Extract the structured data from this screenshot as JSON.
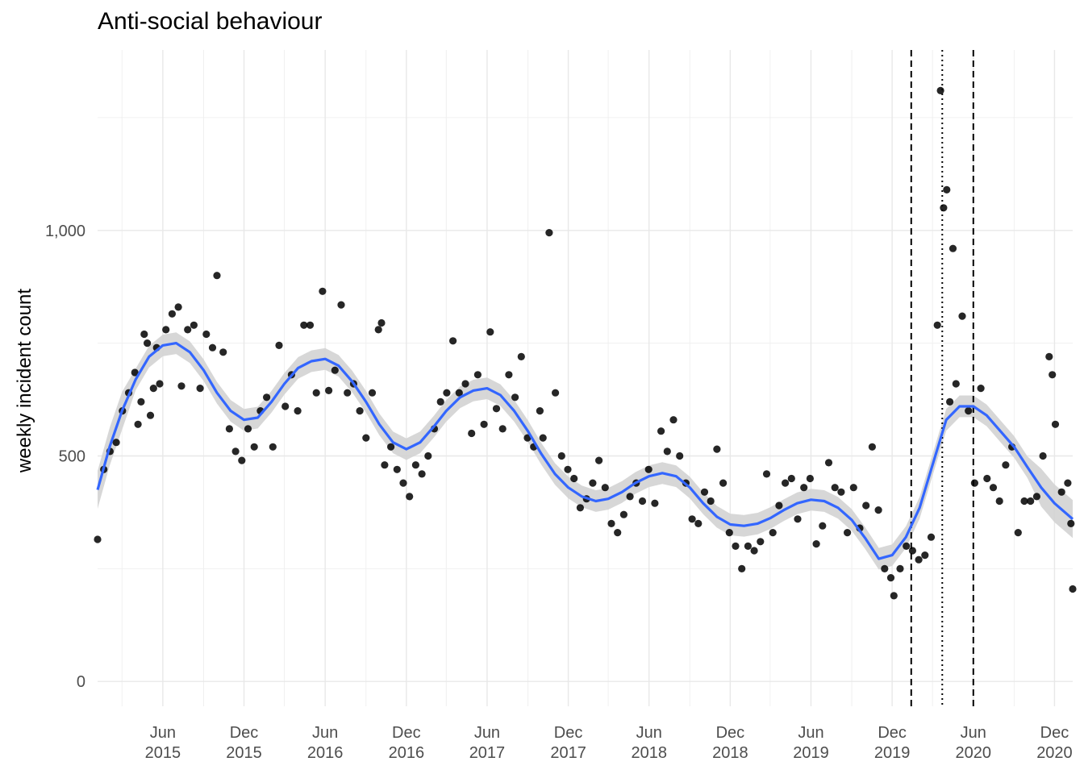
{
  "chart_data": {
    "type": "scatter",
    "title": "Anti-social behaviour",
    "xlabel": "",
    "ylabel": "weekly incident count",
    "x_range": [
      "2015-01-05",
      "2021-01-11"
    ],
    "ylim": [
      -55,
      1400
    ],
    "y_ticks": [
      {
        "value": 0,
        "label": "0"
      },
      {
        "value": 500,
        "label": "500"
      },
      {
        "value": 1000,
        "label": "1,000"
      }
    ],
    "x_ticks": [
      {
        "date": "2015-06-01",
        "line1": "Jun",
        "line2": "2015"
      },
      {
        "date": "2015-12-01",
        "line1": "Dec",
        "line2": "2015"
      },
      {
        "date": "2016-06-01",
        "line1": "Jun",
        "line2": "2016"
      },
      {
        "date": "2016-12-01",
        "line1": "Dec",
        "line2": "2016"
      },
      {
        "date": "2017-06-01",
        "line1": "Jun",
        "line2": "2017"
      },
      {
        "date": "2017-12-01",
        "line1": "Dec",
        "line2": "2017"
      },
      {
        "date": "2018-06-01",
        "line1": "Jun",
        "line2": "2018"
      },
      {
        "date": "2018-12-01",
        "line1": "Dec",
        "line2": "2018"
      },
      {
        "date": "2019-06-01",
        "line1": "Jun",
        "line2": "2019"
      },
      {
        "date": "2019-12-01",
        "line1": "Dec",
        "line2": "2019"
      },
      {
        "date": "2020-06-01",
        "line1": "Jun",
        "line2": "2020"
      },
      {
        "date": "2020-12-01",
        "line1": "Dec",
        "line2": "2020"
      }
    ],
    "grid": true,
    "series": [
      {
        "kind": "points",
        "color": "#000000",
        "points": [
          [
            "2015-01-05",
            315
          ],
          [
            "2015-01-19",
            470
          ],
          [
            "2015-02-02",
            510
          ],
          [
            "2015-02-16",
            530
          ],
          [
            "2015-03-02",
            600
          ],
          [
            "2015-03-16",
            640
          ],
          [
            "2015-03-30",
            685
          ],
          [
            "2015-04-06",
            570
          ],
          [
            "2015-04-13",
            620
          ],
          [
            "2015-04-20",
            770
          ],
          [
            "2015-04-27",
            750
          ],
          [
            "2015-05-04",
            590
          ],
          [
            "2015-05-11",
            650
          ],
          [
            "2015-05-18",
            740
          ],
          [
            "2015-05-25",
            660
          ],
          [
            "2015-06-08",
            780
          ],
          [
            "2015-06-22",
            815
          ],
          [
            "2015-07-06",
            830
          ],
          [
            "2015-07-13",
            655
          ],
          [
            "2015-07-27",
            780
          ],
          [
            "2015-08-10",
            790
          ],
          [
            "2015-08-24",
            650
          ],
          [
            "2015-09-07",
            770
          ],
          [
            "2015-09-21",
            740
          ],
          [
            "2015-10-01",
            900
          ],
          [
            "2015-10-15",
            730
          ],
          [
            "2015-10-29",
            560
          ],
          [
            "2015-11-12",
            510
          ],
          [
            "2015-11-26",
            490
          ],
          [
            "2015-12-10",
            560
          ],
          [
            "2015-12-24",
            520
          ],
          [
            "2016-01-07",
            600
          ],
          [
            "2016-01-21",
            630
          ],
          [
            "2016-02-04",
            520
          ],
          [
            "2016-02-18",
            745
          ],
          [
            "2016-03-03",
            610
          ],
          [
            "2016-03-17",
            680
          ],
          [
            "2016-03-31",
            600
          ],
          [
            "2016-04-14",
            790
          ],
          [
            "2016-04-28",
            790
          ],
          [
            "2016-05-12",
            640
          ],
          [
            "2016-05-26",
            865
          ],
          [
            "2016-06-09",
            645
          ],
          [
            "2016-06-23",
            690
          ],
          [
            "2016-07-07",
            835
          ],
          [
            "2016-07-21",
            640
          ],
          [
            "2016-08-04",
            660
          ],
          [
            "2016-08-18",
            600
          ],
          [
            "2016-09-01",
            540
          ],
          [
            "2016-09-15",
            640
          ],
          [
            "2016-09-29",
            780
          ],
          [
            "2016-10-06",
            795
          ],
          [
            "2016-10-13",
            480
          ],
          [
            "2016-10-27",
            520
          ],
          [
            "2016-11-10",
            470
          ],
          [
            "2016-11-24",
            440
          ],
          [
            "2016-12-08",
            410
          ],
          [
            "2016-12-22",
            480
          ],
          [
            "2017-01-05",
            460
          ],
          [
            "2017-01-19",
            500
          ],
          [
            "2017-02-02",
            560
          ],
          [
            "2017-02-16",
            620
          ],
          [
            "2017-03-02",
            640
          ],
          [
            "2017-03-16",
            755
          ],
          [
            "2017-03-30",
            640
          ],
          [
            "2017-04-13",
            660
          ],
          [
            "2017-04-27",
            550
          ],
          [
            "2017-05-11",
            680
          ],
          [
            "2017-05-25",
            570
          ],
          [
            "2017-06-08",
            775
          ],
          [
            "2017-06-22",
            605
          ],
          [
            "2017-07-06",
            560
          ],
          [
            "2017-07-20",
            680
          ],
          [
            "2017-08-03",
            630
          ],
          [
            "2017-08-17",
            720
          ],
          [
            "2017-08-31",
            540
          ],
          [
            "2017-09-14",
            520
          ],
          [
            "2017-09-28",
            600
          ],
          [
            "2017-10-05",
            540
          ],
          [
            "2017-10-19",
            995
          ],
          [
            "2017-11-02",
            640
          ],
          [
            "2017-11-16",
            500
          ],
          [
            "2017-11-30",
            470
          ],
          [
            "2017-12-14",
            450
          ],
          [
            "2017-12-28",
            385
          ],
          [
            "2018-01-11",
            405
          ],
          [
            "2018-01-25",
            440
          ],
          [
            "2018-02-08",
            490
          ],
          [
            "2018-02-22",
            430
          ],
          [
            "2018-03-08",
            350
          ],
          [
            "2018-03-22",
            330
          ],
          [
            "2018-04-05",
            370
          ],
          [
            "2018-04-19",
            410
          ],
          [
            "2018-05-03",
            440
          ],
          [
            "2018-05-17",
            400
          ],
          [
            "2018-05-31",
            470
          ],
          [
            "2018-06-14",
            395
          ],
          [
            "2018-06-28",
            555
          ],
          [
            "2018-07-12",
            510
          ],
          [
            "2018-07-26",
            580
          ],
          [
            "2018-08-09",
            500
          ],
          [
            "2018-08-23",
            440
          ],
          [
            "2018-09-06",
            360
          ],
          [
            "2018-09-20",
            350
          ],
          [
            "2018-10-04",
            420
          ],
          [
            "2018-10-18",
            400
          ],
          [
            "2018-11-01",
            515
          ],
          [
            "2018-11-15",
            440
          ],
          [
            "2018-11-29",
            330
          ],
          [
            "2018-12-13",
            300
          ],
          [
            "2018-12-27",
            250
          ],
          [
            "2019-01-10",
            300
          ],
          [
            "2019-01-24",
            290
          ],
          [
            "2019-02-07",
            310
          ],
          [
            "2019-02-21",
            460
          ],
          [
            "2019-03-07",
            330
          ],
          [
            "2019-03-21",
            390
          ],
          [
            "2019-04-04",
            440
          ],
          [
            "2019-04-18",
            450
          ],
          [
            "2019-05-02",
            360
          ],
          [
            "2019-05-16",
            430
          ],
          [
            "2019-05-30",
            450
          ],
          [
            "2019-06-13",
            305
          ],
          [
            "2019-06-27",
            345
          ],
          [
            "2019-07-11",
            485
          ],
          [
            "2019-07-25",
            430
          ],
          [
            "2019-08-08",
            420
          ],
          [
            "2019-08-22",
            330
          ],
          [
            "2019-09-05",
            430
          ],
          [
            "2019-09-19",
            340
          ],
          [
            "2019-10-03",
            390
          ],
          [
            "2019-10-17",
            520
          ],
          [
            "2019-10-31",
            380
          ],
          [
            "2019-11-14",
            250
          ],
          [
            "2019-11-28",
            230
          ],
          [
            "2019-12-05",
            190
          ],
          [
            "2019-12-19",
            250
          ],
          [
            "2020-01-02",
            300
          ],
          [
            "2020-01-16",
            290
          ],
          [
            "2020-01-30",
            270
          ],
          [
            "2020-02-13",
            280
          ],
          [
            "2020-02-27",
            320
          ],
          [
            "2020-03-12",
            790
          ],
          [
            "2020-03-19",
            1310
          ],
          [
            "2020-03-26",
            1050
          ],
          [
            "2020-04-02",
            1090
          ],
          [
            "2020-04-09",
            620
          ],
          [
            "2020-04-16",
            960
          ],
          [
            "2020-04-23",
            660
          ],
          [
            "2020-05-07",
            810
          ],
          [
            "2020-05-21",
            600
          ],
          [
            "2020-06-04",
            440
          ],
          [
            "2020-06-18",
            650
          ],
          [
            "2020-07-02",
            450
          ],
          [
            "2020-07-16",
            430
          ],
          [
            "2020-07-30",
            400
          ],
          [
            "2020-08-13",
            480
          ],
          [
            "2020-08-27",
            520
          ],
          [
            "2020-09-10",
            330
          ],
          [
            "2020-09-24",
            400
          ],
          [
            "2020-10-08",
            400
          ],
          [
            "2020-10-22",
            410
          ],
          [
            "2020-11-05",
            500
          ],
          [
            "2020-11-19",
            720
          ],
          [
            "2020-11-26",
            680
          ],
          [
            "2020-12-03",
            570
          ],
          [
            "2020-12-17",
            420
          ],
          [
            "2020-12-31",
            440
          ],
          [
            "2021-01-07",
            350
          ],
          [
            "2021-01-11",
            205
          ]
        ]
      },
      {
        "kind": "smooth",
        "color": "#3366FF",
        "band_color": "#d3d3d3",
        "points": [
          [
            "2015-01-05",
            425
          ],
          [
            "2015-02-01",
            520
          ],
          [
            "2015-03-01",
            600
          ],
          [
            "2015-04-01",
            670
          ],
          [
            "2015-05-01",
            720
          ],
          [
            "2015-06-01",
            745
          ],
          [
            "2015-07-01",
            750
          ],
          [
            "2015-08-01",
            730
          ],
          [
            "2015-09-01",
            690
          ],
          [
            "2015-10-01",
            640
          ],
          [
            "2015-11-01",
            600
          ],
          [
            "2015-12-01",
            580
          ],
          [
            "2016-01-01",
            585
          ],
          [
            "2016-02-01",
            620
          ],
          [
            "2016-03-01",
            660
          ],
          [
            "2016-04-01",
            695
          ],
          [
            "2016-05-01",
            710
          ],
          [
            "2016-06-01",
            715
          ],
          [
            "2016-07-01",
            700
          ],
          [
            "2016-08-01",
            665
          ],
          [
            "2016-09-01",
            620
          ],
          [
            "2016-10-01",
            570
          ],
          [
            "2016-11-01",
            530
          ],
          [
            "2016-12-01",
            515
          ],
          [
            "2017-01-01",
            530
          ],
          [
            "2017-02-01",
            565
          ],
          [
            "2017-03-01",
            600
          ],
          [
            "2017-04-01",
            630
          ],
          [
            "2017-05-01",
            645
          ],
          [
            "2017-06-01",
            650
          ],
          [
            "2017-07-01",
            635
          ],
          [
            "2017-08-01",
            600
          ],
          [
            "2017-09-01",
            555
          ],
          [
            "2017-10-01",
            505
          ],
          [
            "2017-11-01",
            460
          ],
          [
            "2017-12-01",
            430
          ],
          [
            "2018-01-01",
            410
          ],
          [
            "2018-02-01",
            400
          ],
          [
            "2018-03-01",
            405
          ],
          [
            "2018-04-01",
            420
          ],
          [
            "2018-05-01",
            440
          ],
          [
            "2018-06-01",
            455
          ],
          [
            "2018-07-01",
            462
          ],
          [
            "2018-08-01",
            455
          ],
          [
            "2018-09-01",
            430
          ],
          [
            "2018-10-01",
            395
          ],
          [
            "2018-11-01",
            365
          ],
          [
            "2018-12-01",
            348
          ],
          [
            "2019-01-01",
            345
          ],
          [
            "2019-02-01",
            350
          ],
          [
            "2019-03-01",
            362
          ],
          [
            "2019-04-01",
            380
          ],
          [
            "2019-05-01",
            395
          ],
          [
            "2019-06-01",
            403
          ],
          [
            "2019-07-01",
            400
          ],
          [
            "2019-08-01",
            385
          ],
          [
            "2019-09-01",
            358
          ],
          [
            "2019-10-01",
            318
          ],
          [
            "2019-11-01",
            272
          ],
          [
            "2019-12-01",
            280
          ],
          [
            "2020-01-01",
            320
          ],
          [
            "2020-02-01",
            385
          ],
          [
            "2020-03-01",
            480
          ],
          [
            "2020-04-01",
            580
          ],
          [
            "2020-05-01",
            610
          ],
          [
            "2020-06-01",
            610
          ],
          [
            "2020-07-01",
            590
          ],
          [
            "2020-08-01",
            555
          ],
          [
            "2020-09-01",
            520
          ],
          [
            "2020-10-01",
            475
          ],
          [
            "2020-11-01",
            430
          ],
          [
            "2020-12-01",
            395
          ],
          [
            "2021-01-11",
            360
          ]
        ]
      }
    ],
    "reference_lines": [
      {
        "date": "2020-01-13",
        "style": "dashed"
      },
      {
        "date": "2020-03-23",
        "style": "dotted"
      },
      {
        "date": "2020-06-01",
        "style": "dashed"
      }
    ]
  }
}
